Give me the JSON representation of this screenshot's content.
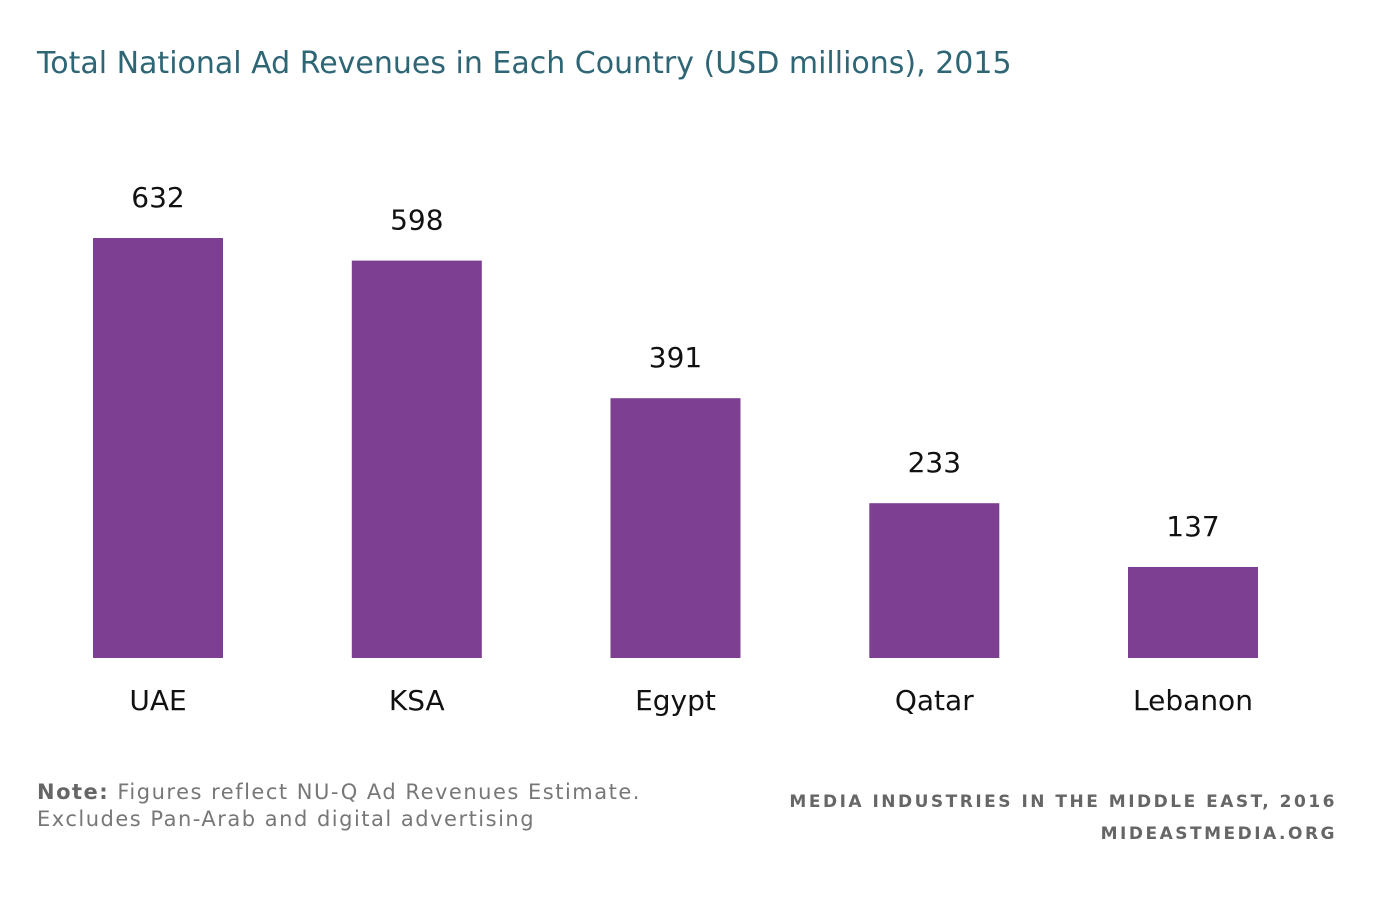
{
  "chart_data": {
    "type": "bar",
    "title": "Total National Ad Revenues in Each Country (USD millions), 2015",
    "categories": [
      "UAE",
      "KSA",
      "Egypt",
      "Qatar",
      "Lebanon"
    ],
    "values": [
      632,
      598,
      391,
      233,
      137
    ],
    "data_labels": [
      "632",
      "598",
      "391",
      "233",
      "137"
    ],
    "xlabel": "",
    "ylabel": "",
    "ylim": [
      0,
      632
    ],
    "grid": false,
    "legend": "none",
    "bar_color": "#7d3f92"
  },
  "note": {
    "label": "Note:",
    "line1": "Figures reflect NU-Q Ad Revenues Estimate.",
    "line2": "Excludes Pan-Arab and digital advertising"
  },
  "footer": {
    "publication": "MEDIA INDUSTRIES IN THE MIDDLE EAST, 2016",
    "website": "MIDEASTMEDIA.ORG"
  },
  "colors": {
    "title": "#2e6675",
    "bar": "#7d3f92",
    "text": "#111111",
    "muted": "#777777"
  }
}
